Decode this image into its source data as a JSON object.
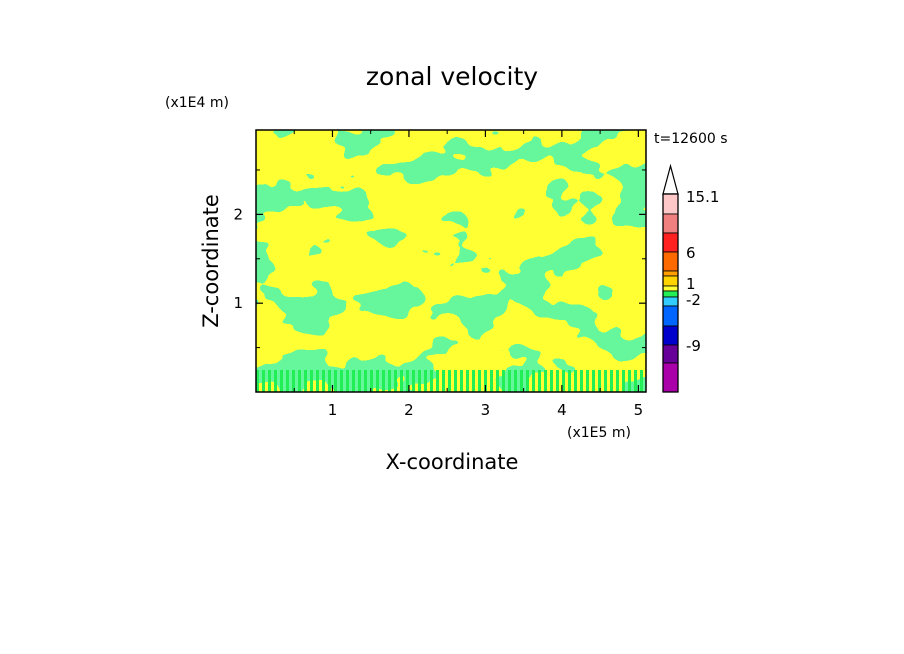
{
  "chart_data": {
    "type": "heatmap",
    "title": "zonal velocity",
    "xlabel": "X-coordinate",
    "ylabel": "Z-coordinate",
    "x_scale_label": "(x1E5 m)",
    "y_scale_label": "(x1E4 m)",
    "time_label": "t=12600 s",
    "xlim": [
      0,
      5.1
    ],
    "ylim": [
      0,
      2.95
    ],
    "x_ticks": [
      "1",
      "2",
      "3",
      "4",
      "5"
    ],
    "y_ticks": [
      "1",
      "2"
    ],
    "field_colors": {
      "lower": "#ffff33",
      "upper": "#22ee55"
    },
    "colorbar": {
      "labels": [
        "15.1",
        "6",
        "1",
        "-2",
        "-9"
      ],
      "extend": "max",
      "bands_top_to_bottom": [
        "#ffc8c8",
        "#f08080",
        "#ff2020",
        "#ff6a00",
        "#ff9f00",
        "#ffd400",
        "#ffff33",
        "#22ee55",
        "#33ccff",
        "#0066ff",
        "#0000cc",
        "#660099",
        "#aa00aa",
        "#ff00aa"
      ]
    }
  }
}
